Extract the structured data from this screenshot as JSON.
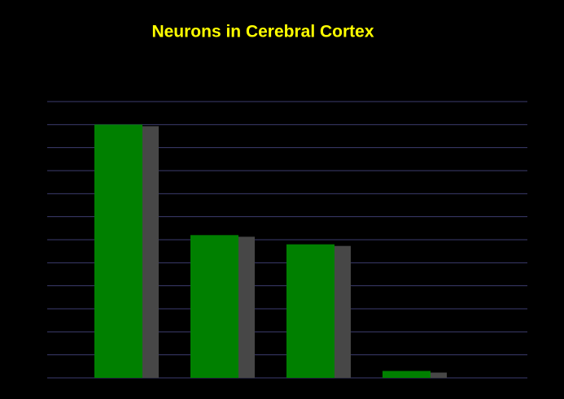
{
  "chart_data": {
    "type": "bar",
    "title": "Neurons in Cerebral Cortex",
    "categories": [
      null,
      null,
      null,
      null
    ],
    "values": [
      11,
      6.2,
      5.8,
      0.3
    ],
    "color": "#008000",
    "ylim": [
      0,
      12
    ],
    "yticks": [
      0,
      1,
      2,
      3,
      4,
      5,
      6,
      7,
      8,
      9,
      10,
      11,
      12
    ],
    "grid": true
  }
}
